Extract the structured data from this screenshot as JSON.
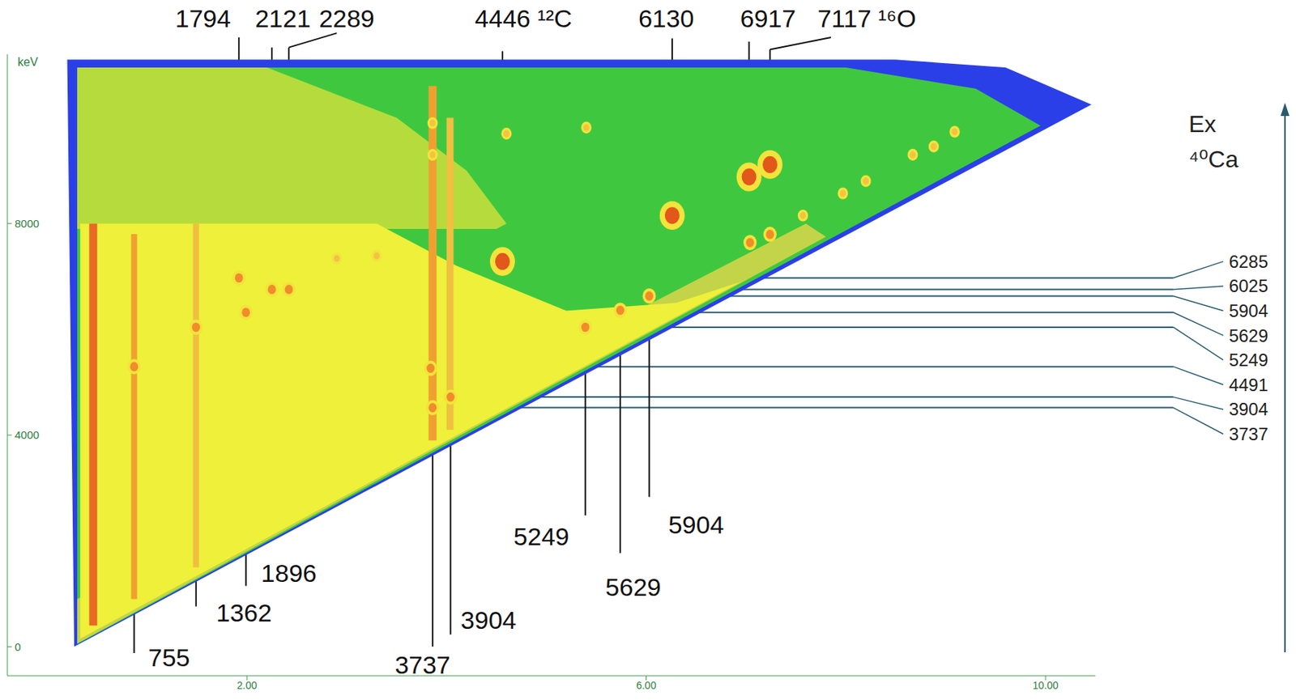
{
  "chart_data": {
    "type": "scatter",
    "y_label": "keV",
    "xlim": [
      -0.4,
      10.5
    ],
    "xticks": [
      {
        "value": 2,
        "label": "2.00"
      },
      {
        "value": 6,
        "label": "6.00"
      },
      {
        "value": 10,
        "label": "10.00"
      }
    ],
    "ylim": [
      -550,
      11200
    ],
    "yticks": [
      0,
      4000,
      8000
    ],
    "grid": false,
    "regions": [
      {
        "color": "#2b3fe8",
        "points": [
          [
            0.27,
            0
          ],
          [
            0.2,
            11100
          ],
          [
            8.5,
            11100
          ],
          [
            9.6,
            10950
          ],
          [
            10.46,
            10250
          ]
        ]
      },
      {
        "color": "#3fc83f",
        "points": [
          [
            0.3,
            50
          ],
          [
            0.3,
            10950
          ],
          [
            8.0,
            10950
          ],
          [
            9.3,
            10550
          ],
          [
            9.95,
            9850
          ]
        ]
      },
      {
        "color": "#c4d448",
        "points": [
          [
            0.3,
            60
          ],
          [
            7.8,
            7750
          ],
          [
            7.6,
            8000
          ],
          [
            0.3,
            900
          ]
        ]
      },
      {
        "color": "#b5dc3c",
        "points": [
          [
            0.3,
            7900
          ],
          [
            0.3,
            10950
          ],
          [
            2.2,
            10950
          ],
          [
            3.5,
            10000
          ],
          [
            4.2,
            9000
          ],
          [
            4.6,
            8000
          ],
          [
            4.5,
            7900
          ]
        ]
      },
      {
        "color": "#eef03a",
        "points": [
          [
            0.33,
            150
          ],
          [
            0.33,
            8000
          ],
          [
            3.3,
            8000
          ],
          [
            4.1,
            7200
          ],
          [
            5.2,
            6350
          ],
          [
            6.3,
            6500
          ],
          [
            6.95,
            6900
          ]
        ]
      },
      {
        "color": "#e86a24",
        "points": [
          [
            0.42,
            400
          ],
          [
            0.42,
            8000
          ],
          [
            0.5,
            8000
          ],
          [
            0.5,
            400
          ]
        ]
      },
      {
        "color": "#f0a030",
        "points": [
          [
            0.84,
            900
          ],
          [
            0.84,
            7800
          ],
          [
            0.9,
            7800
          ],
          [
            0.9,
            900
          ]
        ]
      },
      {
        "color": "#f0c040",
        "points": [
          [
            1.46,
            1500
          ],
          [
            1.46,
            8000
          ],
          [
            1.52,
            8000
          ],
          [
            1.52,
            1500
          ]
        ]
      },
      {
        "color": "#f0a030",
        "points": [
          [
            3.82,
            3900
          ],
          [
            3.82,
            10600
          ],
          [
            3.9,
            10600
          ],
          [
            3.9,
            3900
          ]
        ]
      },
      {
        "color": "#f0c040",
        "points": [
          [
            4.0,
            4100
          ],
          [
            4.0,
            10000
          ],
          [
            4.07,
            10000
          ],
          [
            4.07,
            4100
          ]
        ]
      }
    ],
    "series": [
      {
        "color": "#e2571a",
        "marker": "circle",
        "x": [
          4.56,
          6.26,
          7.03,
          7.24
        ],
        "y": [
          7283,
          8152,
          8882,
          9115
        ]
      },
      {
        "color": "#f08c2a",
        "marker": "circle",
        "x": [
          1.92,
          2.25,
          2.42,
          1.99,
          1.49,
          0.87,
          3.86,
          3.84,
          4.04,
          5.39,
          5.74,
          6.03,
          7.04,
          7.24
        ],
        "y": [
          6972,
          6755,
          6755,
          6320,
          6040,
          5295,
          4519,
          5264,
          4720,
          6040,
          6360,
          6630,
          7640,
          7795
        ]
      },
      {
        "color": "#f2c244",
        "marker": "circle",
        "x": [
          7.57,
          7.97,
          8.2,
          8.67,
          8.88,
          9.09,
          5.4,
          3.86,
          3.86,
          4.6,
          2.9,
          3.3
        ],
        "y": [
          8152,
          8571,
          8804,
          9301,
          9457,
          9736,
          9814,
          9300,
          9900,
          9700,
          7340,
          7390
        ]
      }
    ],
    "annotations": [
      {
        "label": "1794",
        "label_at": [
          1.56,
          11880
        ],
        "line": [
          [
            1.92,
            6972
          ],
          [
            1.92,
            11520
          ]
        ]
      },
      {
        "label": "2121",
        "label_at": [
          2.36,
          11880
        ],
        "line": [
          [
            2.25,
            6755
          ],
          [
            2.25,
            11330
          ]
        ]
      },
      {
        "label": "2289",
        "label_at": [
          3.0,
          11880
        ],
        "line": [
          [
            2.42,
            6755
          ],
          [
            2.42,
            11330
          ],
          [
            2.9,
            11600
          ]
        ]
      },
      {
        "label": "4446 ¹²C",
        "label_at": [
          4.77,
          11880
        ],
        "line": [
          [
            4.56,
            7283
          ],
          [
            4.56,
            11260
          ]
        ]
      },
      {
        "label": "6130",
        "label_at": [
          6.2,
          11880
        ],
        "line": [
          [
            6.26,
            8152
          ],
          [
            6.26,
            11500
          ]
        ]
      },
      {
        "label": "6917",
        "label_at": [
          7.22,
          11880
        ],
        "line": [
          [
            7.03,
            8882
          ],
          [
            7.03,
            11440
          ]
        ]
      },
      {
        "label": "7117 ¹⁶O",
        "label_at": [
          8.21,
          11880
        ],
        "line": [
          [
            7.24,
            9115
          ],
          [
            7.24,
            11290
          ],
          [
            7.85,
            11520
          ]
        ]
      },
      {
        "label": "755",
        "label_at": [
          1.22,
          -200
        ],
        "line": [
          [
            0.87,
            5295
          ],
          [
            0.87,
            -120
          ]
        ]
      },
      {
        "label": "1362",
        "label_at": [
          1.97,
          650
        ],
        "line": [
          [
            1.49,
            6040
          ],
          [
            1.49,
            760
          ]
        ]
      },
      {
        "label": "1896",
        "label_at": [
          2.42,
          1400
        ],
        "line": [
          [
            1.99,
            6320
          ],
          [
            1.99,
            1150
          ]
        ]
      },
      {
        "label": "3737",
        "label_at": [
          3.76,
          -340
        ],
        "line": [
          [
            3.86,
            4519
          ],
          [
            3.86,
            0
          ]
        ]
      },
      {
        "label": "3904",
        "label_at": [
          4.42,
          500
        ],
        "line": [
          [
            4.04,
            4720
          ],
          [
            4.04,
            230
          ]
        ]
      },
      {
        "label": "5249",
        "label_at": [
          4.95,
          2080
        ],
        "line": [
          [
            5.39,
            6040
          ],
          [
            5.39,
            2480
          ]
        ]
      },
      {
        "label": "5629",
        "label_at": [
          5.87,
          1130
        ],
        "line": [
          [
            5.74,
            6360
          ],
          [
            5.74,
            1770
          ]
        ]
      },
      {
        "label": "5904",
        "label_at": [
          6.5,
          2310
        ],
        "line": [
          [
            6.03,
            6630
          ],
          [
            6.03,
            2830
          ]
        ]
      }
    ],
    "levels": [
      {
        "label": "6285",
        "y": 6972,
        "x_from": 1.92
      },
      {
        "label": "6025",
        "y": 6755,
        "x_from": 2.25
      },
      {
        "label": "5904",
        "y": 6630,
        "x_from": 6.03
      },
      {
        "label": "5629",
        "y": 6320,
        "x_from": 1.99
      },
      {
        "label": "5249",
        "y": 6040,
        "x_from": 1.49
      },
      {
        "label": "4491",
        "y": 5295,
        "x_from": 0.87
      },
      {
        "label": "3904",
        "y": 4720,
        "x_from": 4.04
      },
      {
        "label": "3737",
        "y": 4519,
        "x_from": 3.86
      }
    ],
    "level_axis": {
      "title": "Ex",
      "nucleus": "⁴⁰Ca"
    }
  }
}
